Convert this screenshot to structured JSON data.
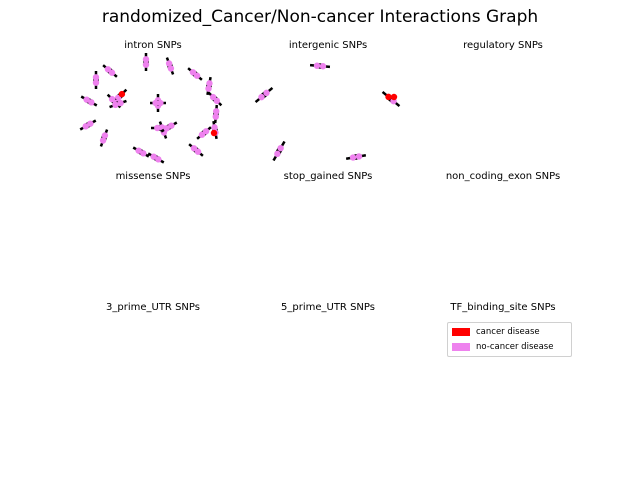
{
  "title": "randomized_Cancer/Non-cancer Interactions Graph",
  "colors": {
    "cancer": "#ff0000",
    "non_cancer": "#ee82ee",
    "edge": "#000000"
  },
  "panels": [
    {
      "title": "intron SNPs"
    },
    {
      "title": "intergenic SNPs"
    },
    {
      "title": "regulatory SNPs"
    },
    {
      "title": "missense SNPs"
    },
    {
      "title": "stop_gained SNPs"
    },
    {
      "title": "non_coding_exon SNPs"
    },
    {
      "title": "3_prime_UTR SNPs"
    },
    {
      "title": "5_prime_UTR SNPs"
    },
    {
      "title": "TF_binding_site SNPs"
    }
  ],
  "legend": [
    {
      "label": "cancer disease",
      "color": "#ff0000"
    },
    {
      "label": "no-cancer disease",
      "color": "#ee82ee"
    }
  ]
}
